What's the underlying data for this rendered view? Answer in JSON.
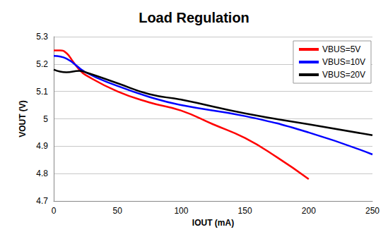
{
  "chart_data": {
    "type": "line",
    "title": "Load Regulation",
    "x_label": "IOUT (mA)",
    "y_label": "VOUT (V)",
    "xlim": [
      0,
      250
    ],
    "xticks": [
      0,
      50,
      100,
      150,
      200,
      250
    ],
    "ylim": [
      4.7,
      5.3
    ],
    "yticks": [
      4.7,
      4.8,
      4.9,
      5,
      5.1,
      5.2,
      5.3
    ],
    "grid": true,
    "legend": "upper right",
    "series": [
      {
        "name": "VBUS=5V",
        "color": "#ff0000",
        "x": [
          0,
          5,
          10,
          15,
          20,
          25,
          50,
          75,
          100,
          125,
          150,
          175,
          200
        ],
        "values": [
          5.25,
          5.25,
          5.24,
          5.21,
          5.18,
          5.16,
          5.1,
          5.06,
          5.03,
          4.98,
          4.93,
          4.86,
          4.78
        ]
      },
      {
        "name": "VBUS=10V",
        "color": "#0000ff",
        "x": [
          0,
          10,
          25,
          50,
          75,
          100,
          150,
          200,
          250
        ],
        "values": [
          5.23,
          5.22,
          5.17,
          5.12,
          5.08,
          5.05,
          5.01,
          4.95,
          4.87
        ]
      },
      {
        "name": "VBUS=20V",
        "color": "#000000",
        "x": [
          0,
          10,
          20,
          25,
          50,
          75,
          100,
          150,
          200,
          250
        ],
        "values": [
          5.18,
          5.17,
          5.175,
          5.17,
          5.13,
          5.09,
          5.07,
          5.02,
          4.98,
          4.94
        ]
      }
    ]
  }
}
